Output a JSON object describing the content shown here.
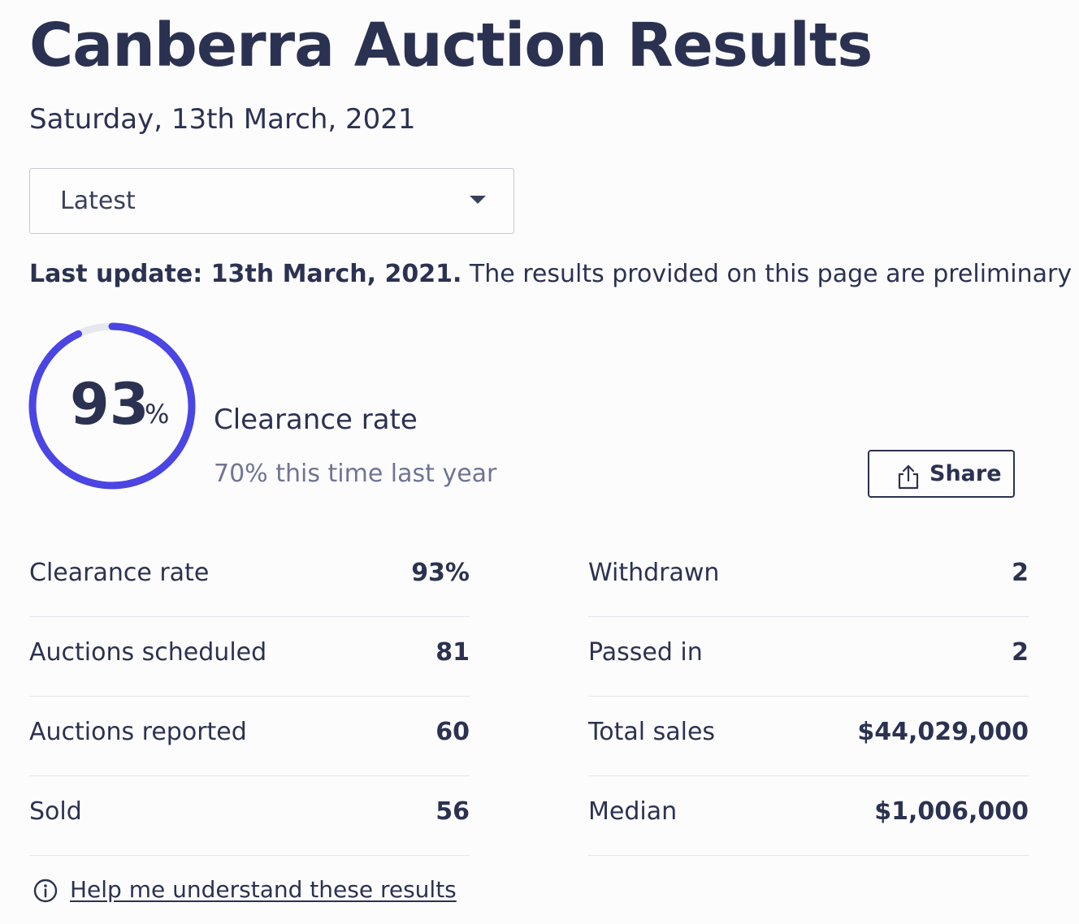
{
  "header": {
    "title": "Canberra Auction Results",
    "date": "Saturday, 13th March, 2021"
  },
  "filter": {
    "selected": "Latest",
    "icon": "chevron-down-icon"
  },
  "update": {
    "label": "Last update: 13th March, 2021.",
    "text": " The results provided on this page are preliminary and currently being updated."
  },
  "summary": {
    "clearance_value": "93",
    "clearance_unit": "%",
    "clearance_fraction": 0.93,
    "label": "Clearance rate",
    "comparison": "70% this time last year",
    "gauge_color": "#4b45e3",
    "track_color": "#e6e8ef"
  },
  "share": {
    "label": "Share",
    "icon": "share-icon"
  },
  "stats": {
    "left": [
      {
        "label": "Clearance rate",
        "value": "93%"
      },
      {
        "label": "Auctions scheduled",
        "value": "81"
      },
      {
        "label": "Auctions reported",
        "value": "60"
      },
      {
        "label": "Sold",
        "value": "56"
      }
    ],
    "right": [
      {
        "label": "Withdrawn",
        "value": "2"
      },
      {
        "label": "Passed in",
        "value": "2"
      },
      {
        "label": "Total sales",
        "value": "$44,029,000"
      },
      {
        "label": "Median",
        "value": "$1,006,000"
      }
    ]
  },
  "help": {
    "text": "Help me understand these results",
    "icon": "info-icon"
  }
}
